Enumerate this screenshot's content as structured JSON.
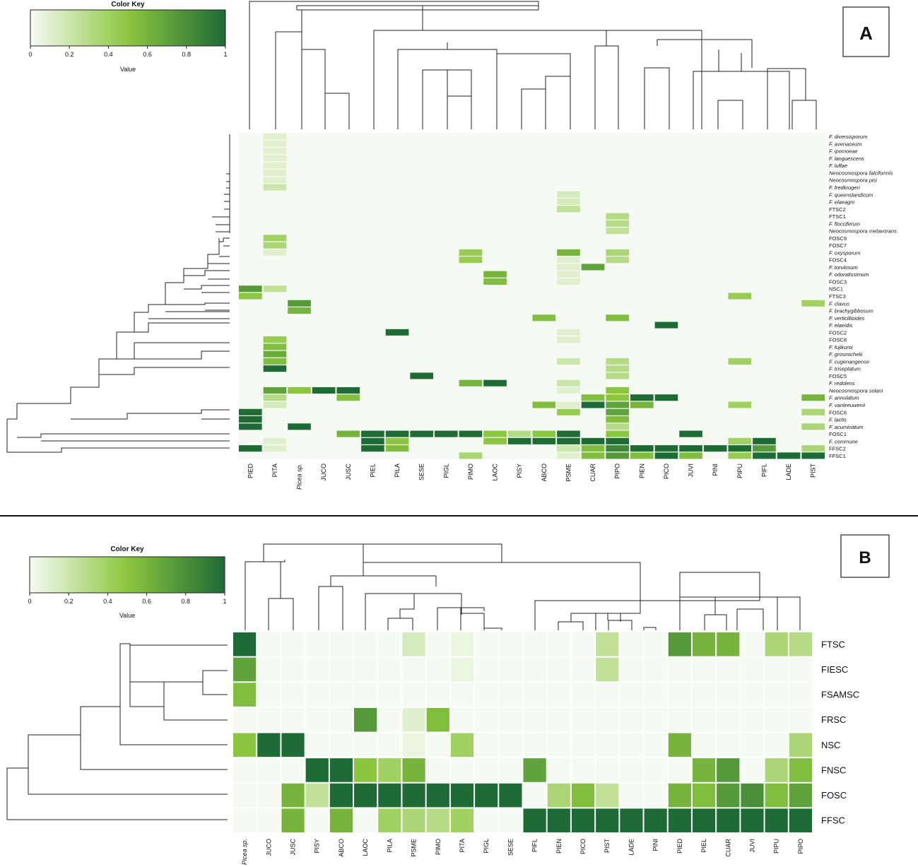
{
  "panelA": {
    "panel_label": "A",
    "color_key": {
      "title": "Color Key",
      "xlabel": "Value",
      "ticks": [
        "0",
        "0.2",
        "0.4",
        "0.6",
        "0.8",
        "1"
      ]
    }
  },
  "panelB": {
    "panel_label": "B",
    "color_key": {
      "title": "Color Key",
      "xlabel": "Value",
      "ticks": [
        "0",
        "0.2",
        "0.4",
        "0.6",
        "0.8",
        "1"
      ]
    }
  },
  "colors": {
    "low": "#f5fbf3",
    "mid": "#8cc63f",
    "high": "#1e6b36",
    "grid": "#ffffff"
  },
  "chart_data": [
    {
      "type": "heatmap",
      "title": "A",
      "xlabel": "",
      "ylabel": "",
      "value_range": [
        0,
        1
      ],
      "columns": [
        "PIED",
        "PITA",
        "Picea sp.",
        "JUCO",
        "JUSC",
        "PIEL",
        "PILA",
        "SESE",
        "PIGL",
        "PIMO",
        "LAOC",
        "PISY",
        "ABCO",
        "PSME",
        "CUAR",
        "PIPO",
        "PIEN",
        "PICO",
        "JUVI",
        "PINI",
        "PIPU",
        "PIFL",
        "LADE",
        "PIST"
      ],
      "rows": [
        "F. diversisporum",
        "F. avenaceum",
        "F. ipomoeae",
        "F. languescens",
        "F. luffae",
        "Neocosmospora falciformis",
        "Neocosmospora pisi",
        "F. fredkrugeri",
        "F. queenslandicum",
        "F. elaeagni",
        "FTSC2",
        "FTSC1",
        "F. flocciferum",
        "Neocosmospora metavorans",
        "FOSC9",
        "FOSC7",
        "F. oxysporum",
        "FOSC4",
        "F. torulosum",
        "F. odoratissimum",
        "FOSC3",
        "NSC1",
        "FTSC3",
        "F. clavus",
        "F. brachygibbosum",
        "F. verticillioides",
        "F. elaeidis",
        "FOSC2",
        "FOSC8",
        "F. fujikuroi",
        "F. grosmichelii",
        "F. cugenangense",
        "F. triseptatum",
        "FOSC5",
        "F. redolens",
        "Neocosmospora solani",
        "F. annulatum",
        "F. vanleeuwenii",
        "FOSC6",
        "F. lactis",
        "F. acuminatum",
        "FOSC1",
        "F. commune",
        "FFSC2",
        "FFSC1"
      ],
      "cells": [
        [
          0,
          1,
          0.1
        ],
        [
          1,
          1,
          0.1
        ],
        [
          2,
          1,
          0.1
        ],
        [
          3,
          1,
          0.1
        ],
        [
          4,
          1,
          0.1
        ],
        [
          5,
          1,
          0.1
        ],
        [
          6,
          1,
          0.1
        ],
        [
          7,
          1,
          0.2
        ],
        [
          8,
          13,
          0.15
        ],
        [
          9,
          13,
          0.15
        ],
        [
          10,
          13,
          0.25
        ],
        [
          11,
          15,
          0.3
        ],
        [
          12,
          15,
          0.3
        ],
        [
          13,
          15,
          0.25
        ],
        [
          14,
          1,
          0.4
        ],
        [
          15,
          1,
          0.35
        ],
        [
          16,
          1,
          0.1
        ],
        [
          16,
          9,
          0.45
        ],
        [
          16,
          13,
          0.6
        ],
        [
          16,
          15,
          0.35
        ],
        [
          17,
          9,
          0.45
        ],
        [
          17,
          13,
          0.1
        ],
        [
          17,
          15,
          0.3
        ],
        [
          18,
          14,
          0.7
        ],
        [
          18,
          13,
          0.1
        ],
        [
          19,
          10,
          0.6
        ],
        [
          19,
          13,
          0.1
        ],
        [
          20,
          10,
          0.55
        ],
        [
          20,
          13,
          0.1
        ],
        [
          21,
          0,
          0.75
        ],
        [
          21,
          1,
          0.25
        ],
        [
          22,
          0,
          0.5
        ],
        [
          22,
          20,
          0.45
        ],
        [
          23,
          2,
          0.75
        ],
        [
          23,
          23,
          0.4
        ],
        [
          24,
          2,
          0.6
        ],
        [
          25,
          12,
          0.55
        ],
        [
          25,
          15,
          0.55
        ],
        [
          26,
          17,
          1.0
        ],
        [
          27,
          6,
          1.0
        ],
        [
          27,
          13,
          0.1
        ],
        [
          28,
          1,
          0.45
        ],
        [
          28,
          13,
          0.1
        ],
        [
          29,
          1,
          0.55
        ],
        [
          30,
          1,
          0.65
        ],
        [
          31,
          1,
          0.55
        ],
        [
          31,
          13,
          0.2
        ],
        [
          31,
          15,
          0.3
        ],
        [
          31,
          20,
          0.4
        ],
        [
          32,
          1,
          1.0
        ],
        [
          32,
          15,
          0.3
        ],
        [
          33,
          7,
          1.0
        ],
        [
          33,
          15,
          0.3
        ],
        [
          34,
          9,
          0.6
        ],
        [
          34,
          10,
          1.0
        ],
        [
          34,
          13,
          0.2
        ],
        [
          35,
          1,
          0.7
        ],
        [
          35,
          2,
          0.5
        ],
        [
          35,
          3,
          1.0
        ],
        [
          35,
          4,
          1.0
        ],
        [
          35,
          13,
          0.1
        ],
        [
          35,
          15,
          0.5
        ],
        [
          36,
          1,
          0.3
        ],
        [
          36,
          4,
          0.55
        ],
        [
          36,
          14,
          0.55
        ],
        [
          36,
          15,
          0.5
        ],
        [
          36,
          16,
          1.0
        ],
        [
          36,
          17,
          1.0
        ],
        [
          36,
          23,
          0.6
        ],
        [
          37,
          1,
          0.15
        ],
        [
          37,
          12,
          0.55
        ],
        [
          37,
          13,
          0.1
        ],
        [
          37,
          14,
          1.0
        ],
        [
          37,
          15,
          0.7
        ],
        [
          37,
          16,
          0.6
        ],
        [
          37,
          20,
          0.4
        ],
        [
          38,
          0,
          1.0
        ],
        [
          38,
          13,
          0.45
        ],
        [
          38,
          15,
          0.7
        ],
        [
          38,
          23,
          0.35
        ],
        [
          39,
          0,
          1.0
        ],
        [
          39,
          15,
          0.55
        ],
        [
          40,
          0,
          1.0
        ],
        [
          40,
          2,
          1.0
        ],
        [
          40,
          15,
          0.3
        ],
        [
          40,
          23,
          0.35
        ],
        [
          41,
          4,
          0.6
        ],
        [
          41,
          5,
          1.0
        ],
        [
          41,
          6,
          1.0
        ],
        [
          41,
          7,
          1.0
        ],
        [
          41,
          8,
          1.0
        ],
        [
          41,
          9,
          1.0
        ],
        [
          41,
          10,
          0.5
        ],
        [
          41,
          11,
          0.3
        ],
        [
          41,
          12,
          0.5
        ],
        [
          41,
          13,
          1.0
        ],
        [
          41,
          15,
          0.5
        ],
        [
          41,
          18,
          1.0
        ],
        [
          42,
          1,
          0.1
        ],
        [
          42,
          5,
          1.0
        ],
        [
          42,
          6,
          0.5
        ],
        [
          42,
          10,
          0.5
        ],
        [
          42,
          11,
          1.0
        ],
        [
          42,
          12,
          1.0
        ],
        [
          42,
          13,
          1.0
        ],
        [
          42,
          14,
          1.0
        ],
        [
          42,
          15,
          1.0
        ],
        [
          42,
          20,
          0.4
        ],
        [
          42,
          21,
          1.0
        ],
        [
          43,
          0,
          1.0
        ],
        [
          43,
          1,
          0.1
        ],
        [
          43,
          5,
          1.0
        ],
        [
          43,
          6,
          0.55
        ],
        [
          43,
          13,
          0.2
        ],
        [
          43,
          14,
          0.55
        ],
        [
          43,
          15,
          0.85
        ],
        [
          43,
          16,
          1.0
        ],
        [
          43,
          17,
          1.0
        ],
        [
          43,
          18,
          1.0
        ],
        [
          43,
          19,
          1.0
        ],
        [
          43,
          20,
          1.0
        ],
        [
          43,
          21,
          0.75
        ],
        [
          43,
          23,
          0.35
        ],
        [
          44,
          9,
          0.35
        ],
        [
          44,
          13,
          0.1
        ],
        [
          44,
          14,
          0.55
        ],
        [
          44,
          15,
          0.75
        ],
        [
          44,
          16,
          0.55
        ],
        [
          44,
          17,
          1.0
        ],
        [
          44,
          18,
          0.55
        ],
        [
          44,
          20,
          0.45
        ],
        [
          44,
          21,
          1.0
        ],
        [
          44,
          22,
          1.0
        ],
        [
          44,
          23,
          1.0
        ]
      ]
    },
    {
      "type": "heatmap",
      "title": "B",
      "xlabel": "",
      "ylabel": "",
      "value_range": [
        0,
        1
      ],
      "columns": [
        "Picea sp.",
        "JUCO",
        "JUSC",
        "PISY",
        "ABCO",
        "LAOC",
        "PILA",
        "PSME",
        "PIMO",
        "PITA",
        "PIGL",
        "SESE",
        "PIFL",
        "PIEN",
        "PICO",
        "PIST",
        "LADE",
        "PINI",
        "PIED",
        "PIEL",
        "CUAR",
        "JUVI",
        "PIPU",
        "PIPO"
      ],
      "rows": [
        "FTSC",
        "FIESC",
        "FSAMSC",
        "FRSC",
        "NSC",
        "FNSC",
        "FOSC",
        "FFSC"
      ],
      "values": [
        [
          1.0,
          0,
          0,
          0,
          0,
          0,
          0,
          0.15,
          0,
          0.05,
          0,
          0,
          0,
          0,
          0,
          0.25,
          0,
          0,
          0.75,
          0.6,
          0.6,
          0,
          0.35,
          0.3
        ],
        [
          0.7,
          0,
          0,
          0,
          0,
          0,
          0,
          0,
          0,
          0.05,
          0,
          0,
          0,
          0,
          0,
          0.25,
          0,
          0,
          0,
          0,
          0,
          0,
          0,
          0
        ],
        [
          0.55,
          0,
          0,
          0,
          0,
          0,
          0,
          0,
          0,
          0,
          0,
          0,
          0,
          0,
          0,
          0,
          0,
          0,
          0,
          0,
          0,
          0,
          0,
          0
        ],
        [
          0,
          0,
          0,
          0,
          0,
          0.75,
          0,
          0.1,
          0.55,
          0,
          0,
          0,
          0,
          0,
          0,
          0,
          0,
          0,
          0,
          0,
          0,
          0,
          0,
          0
        ],
        [
          0.5,
          1.0,
          1.0,
          0,
          0,
          0,
          0,
          0.05,
          0,
          0.4,
          0,
          0,
          0,
          0,
          0,
          0,
          0,
          0,
          0.6,
          0,
          0,
          0,
          0,
          0.35
        ],
        [
          0,
          0,
          0,
          1.0,
          1.0,
          0.5,
          0.4,
          0.6,
          0,
          0,
          0,
          0,
          0.7,
          0,
          0,
          0,
          0,
          0,
          0,
          0.6,
          0.75,
          0,
          0.35,
          0.55
        ],
        [
          0,
          0,
          0.6,
          0.25,
          1.0,
          1.0,
          1.0,
          1.0,
          1.0,
          1.0,
          1.0,
          1.0,
          0,
          0.35,
          0.55,
          0.25,
          0,
          0,
          0.6,
          0.55,
          0.75,
          0.8,
          0.55,
          0.7
        ],
        [
          0,
          0,
          0.6,
          0,
          0.6,
          0,
          0.4,
          0.35,
          0.3,
          0.4,
          0,
          0,
          1.0,
          1.0,
          1.0,
          1.0,
          1.0,
          1.0,
          1.0,
          1.0,
          1.0,
          1.0,
          1.0,
          1.0
        ]
      ]
    }
  ]
}
